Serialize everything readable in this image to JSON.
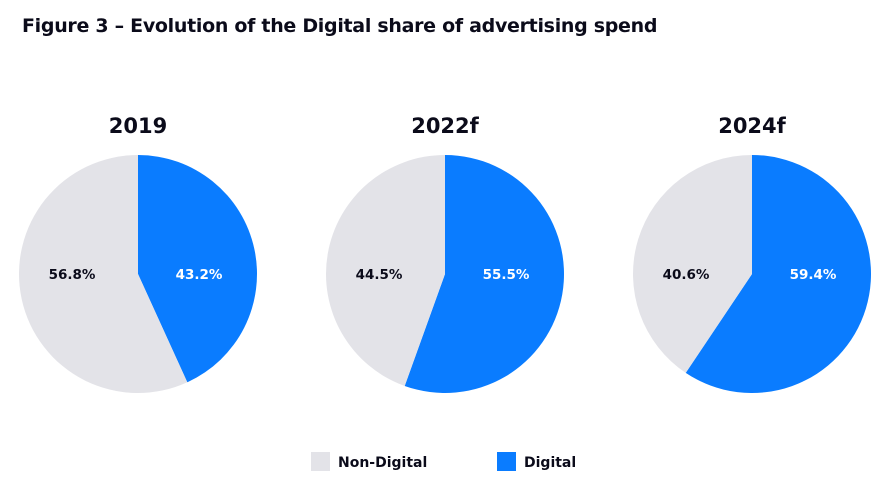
{
  "chart_data": {
    "type": "pie",
    "title": "Figure 3 – Evolution of the Digital share of advertising spend",
    "legend": {
      "placement": "bottom-center",
      "entries": [
        {
          "name": "Non-Digital",
          "color": "#e3e3e8"
        },
        {
          "name": "Digital",
          "color": "#0a7cff"
        }
      ]
    },
    "charts": [
      {
        "title": "2019",
        "slices": [
          {
            "name": "Digital",
            "value": 43.2,
            "label": "43.2%"
          },
          {
            "name": "Non-Digital",
            "value": 56.8,
            "label": "56.8%"
          }
        ]
      },
      {
        "title": "2022f",
        "slices": [
          {
            "name": "Digital",
            "value": 55.5,
            "label": "55.5%"
          },
          {
            "name": "Non-Digital",
            "value": 44.5,
            "label": "44.5%"
          }
        ]
      },
      {
        "title": "2024f",
        "slices": [
          {
            "name": "Digital",
            "value": 59.4,
            "label": "59.4%"
          },
          {
            "name": "Non-Digital",
            "value": 40.6,
            "label": "40.6%"
          }
        ]
      }
    ]
  },
  "colors": {
    "Digital": "#0a7cff",
    "Non-Digital": "#e3e3e8",
    "label_on_digital": "#ffffff",
    "label_on_non_digital": "#0b0b1a"
  }
}
